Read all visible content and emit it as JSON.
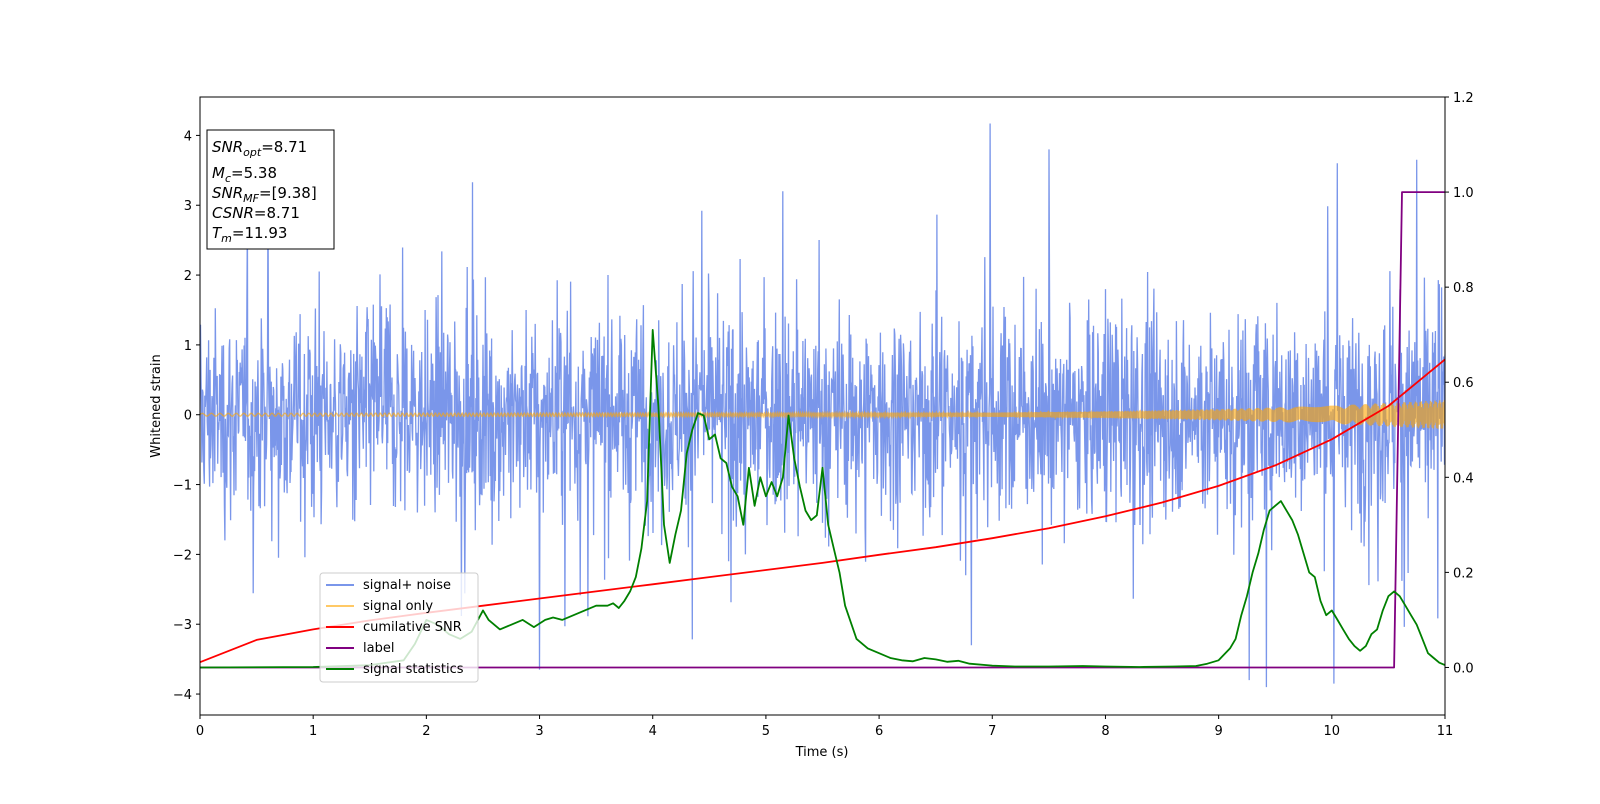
{
  "chart_data": {
    "type": "line",
    "xlabel": "Time (s)",
    "ylabel": "Whitened strain",
    "xlim": [
      0,
      11
    ],
    "ylim": [
      -4.3,
      4.55
    ],
    "y2lim": [
      -0.1,
      1.2
    ],
    "xticks": [
      "0",
      "1",
      "2",
      "3",
      "4",
      "5",
      "6",
      "7",
      "8",
      "9",
      "10",
      "11"
    ],
    "yticks": [
      "−4",
      "−3",
      "−2",
      "−1",
      "0",
      "1",
      "2",
      "3",
      "4"
    ],
    "y2ticks": [
      "0.0",
      "0.2",
      "0.4",
      "0.6",
      "0.8",
      "1.0",
      "1.2"
    ],
    "info_box": {
      "snr_opt": {
        "sym": "SNR",
        "sub": "opt",
        "val": "=8.71"
      },
      "mc": {
        "sym": "M",
        "sub": "c",
        "val": "=5.38"
      },
      "snr_mf": {
        "sym": "SNR",
        "sub": "MF",
        "val": "=[9.38]"
      },
      "csnr": {
        "sym": "CSNR",
        "sub": "",
        "val": "=8.71"
      },
      "tm": {
        "sym": "T",
        "sub": "m",
        "val": "=11.93"
      }
    },
    "legend_position": "lower-left",
    "series": [
      {
        "name": "signal+ noise",
        "color": "#4169e1",
        "axis": "left",
        "kind": "noise",
        "band_envelope": [
          [
            0,
            1.3
          ],
          [
            11,
            1.3
          ]
        ],
        "extremes": [
          [
            1.92,
            -1.4
          ],
          [
            4.82,
            -2.0
          ],
          [
            6.98,
            4.17
          ],
          [
            7.5,
            3.8
          ],
          [
            9.27,
            -3.8
          ],
          [
            9.42,
            -3.9
          ],
          [
            10.02,
            -3.85
          ],
          [
            10.05,
            3.6
          ],
          [
            10.75,
            3.65
          ],
          [
            3.0,
            -3.65
          ],
          [
            5.15,
            3.2
          ],
          [
            0.6,
            3.35
          ]
        ]
      },
      {
        "name": "signal only",
        "color": "#ffa500",
        "axis": "left",
        "kind": "chirp",
        "amplitude": [
          [
            0,
            0.02
          ],
          [
            7,
            0.03
          ],
          [
            8,
            0.05
          ],
          [
            9,
            0.08
          ],
          [
            10,
            0.13
          ],
          [
            11,
            0.21
          ]
        ]
      },
      {
        "name": "cumilative SNR",
        "color": "#ff0000",
        "axis": "right",
        "x": [
          0,
          0.5,
          1,
          1.5,
          2,
          2.5,
          3,
          3.5,
          4,
          4.5,
          5,
          5.5,
          6,
          6.5,
          7,
          7.5,
          8,
          8.5,
          9,
          9.5,
          10,
          10.5,
          11
        ],
        "y": [
          0.011,
          0.058,
          0.08,
          0.099,
          0.115,
          0.13,
          0.145,
          0.16,
          0.175,
          0.19,
          0.205,
          0.22,
          0.237,
          0.253,
          0.272,
          0.293,
          0.318,
          0.347,
          0.382,
          0.425,
          0.48,
          0.55,
          0.648
        ]
      },
      {
        "name": "label",
        "color": "#800080",
        "axis": "right",
        "x": [
          0,
          10.55,
          10.62,
          11
        ],
        "y": [
          0,
          0,
          1,
          1
        ]
      },
      {
        "name": "signal statistics",
        "color": "#008000",
        "axis": "right",
        "x": [
          0,
          1.0,
          1.5,
          1.8,
          1.9,
          2.0,
          2.1,
          2.2,
          2.3,
          2.4,
          2.5,
          2.55,
          2.65,
          2.75,
          2.85,
          2.95,
          3.05,
          3.12,
          3.2,
          3.3,
          3.4,
          3.5,
          3.6,
          3.65,
          3.7,
          3.75,
          3.8,
          3.85,
          3.9,
          3.95,
          4.0,
          4.05,
          4.1,
          4.15,
          4.2,
          4.25,
          4.3,
          4.35,
          4.4,
          4.45,
          4.5,
          4.55,
          4.6,
          4.65,
          4.7,
          4.75,
          4.8,
          4.85,
          4.9,
          4.95,
          5.0,
          5.05,
          5.1,
          5.15,
          5.2,
          5.25,
          5.3,
          5.35,
          5.4,
          5.45,
          5.5,
          5.55,
          5.6,
          5.65,
          5.7,
          5.8,
          5.9,
          6.0,
          6.1,
          6.2,
          6.3,
          6.4,
          6.5,
          6.6,
          6.7,
          6.8,
          7.0,
          7.2,
          7.5,
          7.8,
          8.0,
          8.3,
          8.6,
          8.8,
          8.9,
          9.0,
          9.1,
          9.15,
          9.2,
          9.25,
          9.3,
          9.35,
          9.4,
          9.45,
          9.5,
          9.55,
          9.6,
          9.65,
          9.7,
          9.8,
          9.85,
          9.9,
          9.95,
          10.0,
          10.05,
          10.1,
          10.15,
          10.2,
          10.25,
          10.3,
          10.35,
          10.4,
          10.45,
          10.5,
          10.55,
          10.6,
          10.65,
          10.7,
          10.75,
          10.8,
          10.85,
          10.9,
          10.95,
          11.0
        ],
        "y": [
          0,
          0.001,
          0.005,
          0.015,
          0.05,
          0.1,
          0.09,
          0.07,
          0.06,
          0.075,
          0.12,
          0.1,
          0.08,
          0.09,
          0.1,
          0.085,
          0.1,
          0.105,
          0.1,
          0.11,
          0.12,
          0.13,
          0.13,
          0.135,
          0.125,
          0.14,
          0.16,
          0.19,
          0.25,
          0.35,
          0.71,
          0.55,
          0.3,
          0.22,
          0.28,
          0.33,
          0.45,
          0.5,
          0.535,
          0.53,
          0.48,
          0.49,
          0.44,
          0.43,
          0.38,
          0.36,
          0.3,
          0.42,
          0.34,
          0.4,
          0.36,
          0.39,
          0.36,
          0.4,
          0.53,
          0.44,
          0.38,
          0.33,
          0.31,
          0.32,
          0.42,
          0.3,
          0.25,
          0.2,
          0.13,
          0.06,
          0.04,
          0.03,
          0.02,
          0.015,
          0.013,
          0.02,
          0.017,
          0.012,
          0.014,
          0.008,
          0.004,
          0.002,
          0.002,
          0.003,
          0.002,
          0.001,
          0.002,
          0.003,
          0.008,
          0.015,
          0.04,
          0.06,
          0.11,
          0.15,
          0.2,
          0.24,
          0.29,
          0.33,
          0.34,
          0.35,
          0.33,
          0.31,
          0.28,
          0.2,
          0.19,
          0.14,
          0.11,
          0.12,
          0.1,
          0.08,
          0.06,
          0.045,
          0.035,
          0.045,
          0.07,
          0.08,
          0.12,
          0.15,
          0.16,
          0.15,
          0.13,
          0.11,
          0.09,
          0.06,
          0.03,
          0.02,
          0.01,
          0.005
        ]
      }
    ]
  }
}
